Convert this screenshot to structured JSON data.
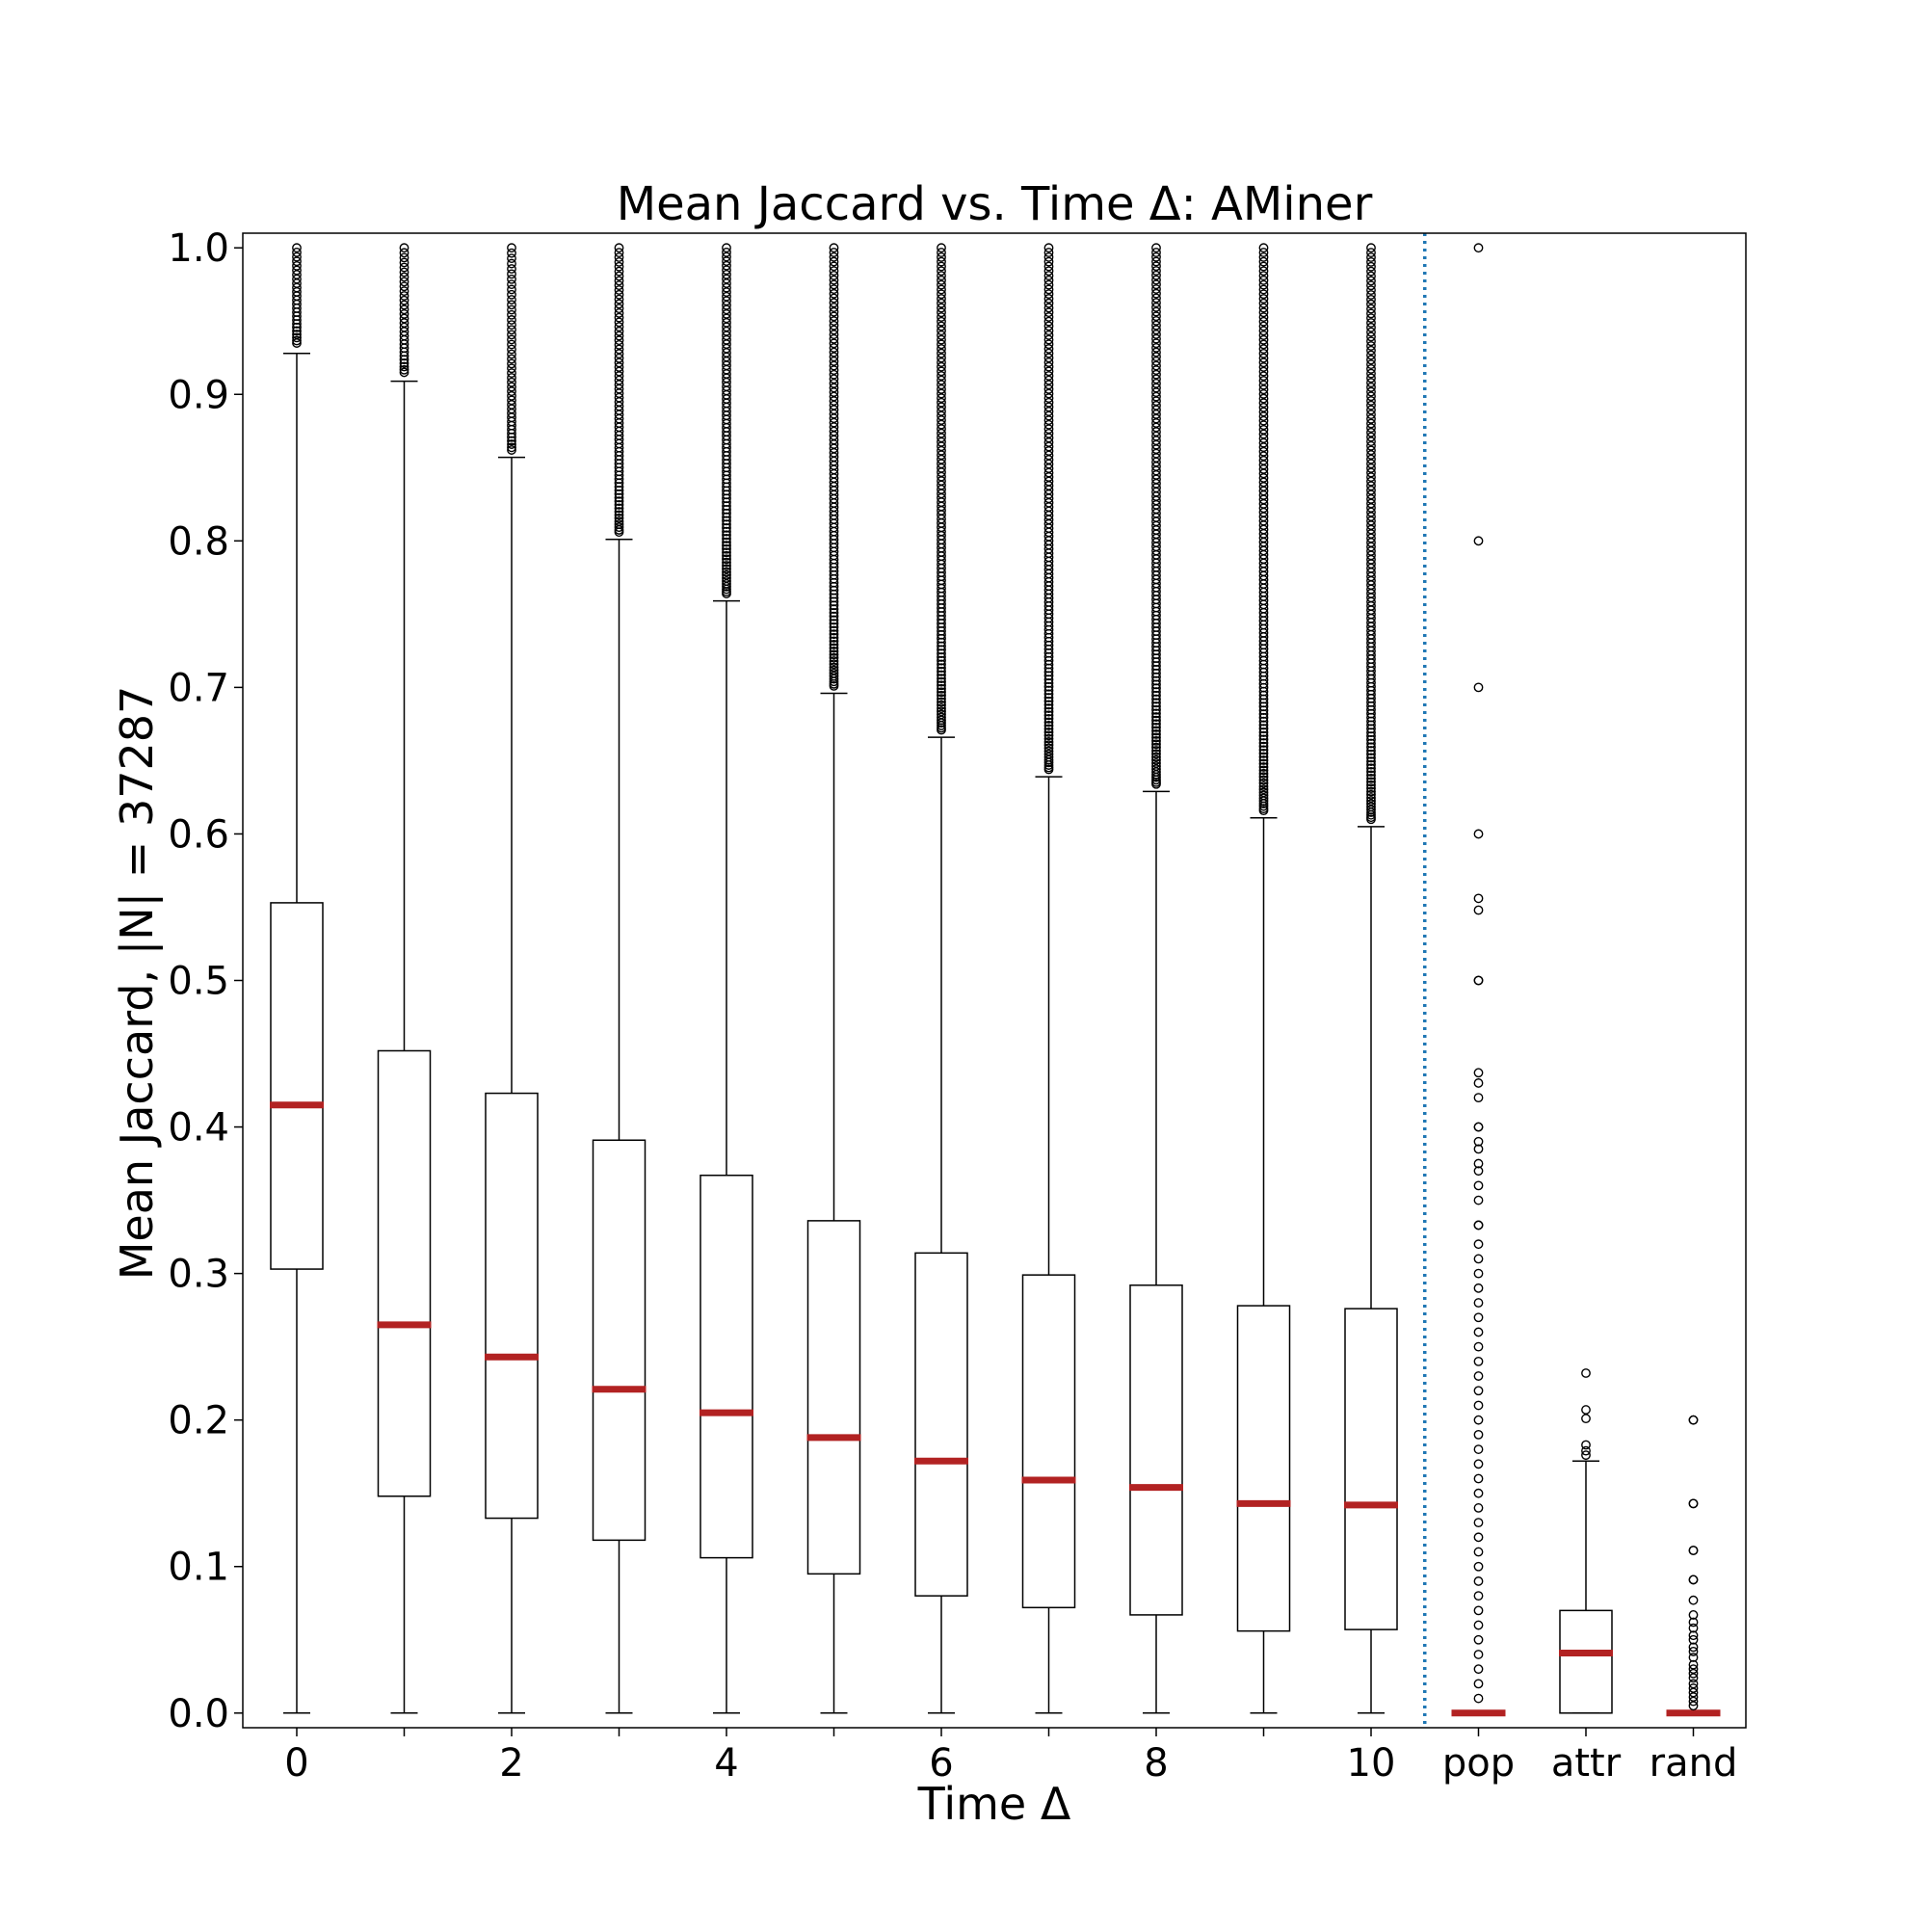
{
  "chart_data": {
    "type": "box",
    "title": "Mean Jaccard vs. Time Δ: AMiner",
    "xlabel": "Time Δ",
    "ylabel": "Mean Jaccard, |N| = 37287",
    "ylim": [
      -0.01,
      1.01
    ],
    "yticks": [
      "0.0",
      "0.1",
      "0.2",
      "0.3",
      "0.4",
      "0.5",
      "0.6",
      "0.7",
      "0.8",
      "0.9",
      "1.0"
    ],
    "xtick_labels": [
      "0",
      "2",
      "4",
      "6",
      "8",
      "10",
      "pop",
      "attr",
      "rand"
    ],
    "grid": false,
    "separator": {
      "after_category": "10",
      "style": "dotted",
      "color": "#1f77b4"
    },
    "median_color": "#b22222",
    "boxes": [
      {
        "category": "0",
        "whisker_low": 0.0,
        "q1": 0.303,
        "median": 0.415,
        "q3": 0.553,
        "whisker_high": 0.928,
        "flier_range": [
          0.935,
          1.0
        ],
        "flier_count": 25
      },
      {
        "category": "1",
        "whisker_low": 0.0,
        "q1": 0.148,
        "median": 0.265,
        "q3": 0.452,
        "whisker_high": 0.909,
        "flier_range": [
          0.915,
          1.0
        ],
        "flier_count": 30
      },
      {
        "category": "2",
        "whisker_low": 0.0,
        "q1": 0.133,
        "median": 0.243,
        "q3": 0.423,
        "whisker_high": 0.857,
        "flier_range": [
          0.862,
          1.0
        ],
        "flier_count": 45
      },
      {
        "category": "3",
        "whisker_low": 0.0,
        "q1": 0.118,
        "median": 0.221,
        "q3": 0.391,
        "whisker_high": 0.801,
        "flier_range": [
          0.806,
          1.0
        ],
        "flier_count": 70
      },
      {
        "category": "4",
        "whisker_low": 0.0,
        "q1": 0.106,
        "median": 0.205,
        "q3": 0.367,
        "whisker_high": 0.759,
        "flier_range": [
          0.764,
          1.0
        ],
        "flier_count": 90
      },
      {
        "category": "5",
        "whisker_low": 0.0,
        "q1": 0.095,
        "median": 0.188,
        "q3": 0.336,
        "whisker_high": 0.696,
        "flier_range": [
          0.701,
          1.0
        ],
        "flier_count": 110
      },
      {
        "category": "6",
        "whisker_low": 0.0,
        "q1": 0.08,
        "median": 0.172,
        "q3": 0.314,
        "whisker_high": 0.666,
        "flier_range": [
          0.671,
          1.0
        ],
        "flier_count": 120
      },
      {
        "category": "7",
        "whisker_low": 0.0,
        "q1": 0.072,
        "median": 0.159,
        "q3": 0.299,
        "whisker_high": 0.639,
        "flier_range": [
          0.644,
          1.0
        ],
        "flier_count": 130
      },
      {
        "category": "8",
        "whisker_low": 0.0,
        "q1": 0.067,
        "median": 0.154,
        "q3": 0.292,
        "whisker_high": 0.629,
        "flier_range": [
          0.634,
          1.0
        ],
        "flier_count": 135
      },
      {
        "category": "9",
        "whisker_low": 0.0,
        "q1": 0.056,
        "median": 0.143,
        "q3": 0.278,
        "whisker_high": 0.611,
        "flier_range": [
          0.616,
          1.0
        ],
        "flier_count": 140
      },
      {
        "category": "10",
        "whisker_low": 0.0,
        "q1": 0.057,
        "median": 0.142,
        "q3": 0.276,
        "whisker_high": 0.605,
        "flier_range": [
          0.61,
          1.0
        ],
        "flier_count": 140
      },
      {
        "category": "pop",
        "whisker_low": 0.0,
        "q1": 0.0,
        "median": 0.0,
        "q3": 0.0,
        "whisker_high": 0.0,
        "fliers": [
          1.0,
          0.8,
          0.7,
          0.6,
          0.556,
          0.548,
          0.5,
          0.5,
          0.437,
          0.43,
          0.42,
          0.4,
          0.4,
          0.39,
          0.385,
          0.375,
          0.37,
          0.36,
          0.35,
          0.333,
          0.333,
          0.32,
          0.31,
          0.3,
          0.29,
          0.28,
          0.27,
          0.26,
          0.25,
          0.24,
          0.23,
          0.22,
          0.21,
          0.2,
          0.19,
          0.18,
          0.17,
          0.16,
          0.15,
          0.14,
          0.13,
          0.12,
          0.11,
          0.1,
          0.09,
          0.08,
          0.07,
          0.06,
          0.05,
          0.04,
          0.03,
          0.02,
          0.01
        ]
      },
      {
        "category": "attr",
        "whisker_low": 0.0,
        "q1": 0.0,
        "median": 0.041,
        "q3": 0.07,
        "whisker_high": 0.172,
        "fliers": [
          0.232,
          0.207,
          0.201,
          0.183,
          0.179,
          0.176
        ]
      },
      {
        "category": "rand",
        "whisker_low": 0.0,
        "q1": 0.0,
        "median": 0.0,
        "q3": 0.0,
        "whisker_high": 0.0,
        "fliers": [
          0.2,
          0.2,
          0.143,
          0.143,
          0.111,
          0.111,
          0.091,
          0.091,
          0.077,
          0.067,
          0.062,
          0.058,
          0.053,
          0.05,
          0.045,
          0.042,
          0.038,
          0.033,
          0.03,
          0.027,
          0.024,
          0.02,
          0.017,
          0.014,
          0.011,
          0.008,
          0.005
        ]
      }
    ]
  }
}
